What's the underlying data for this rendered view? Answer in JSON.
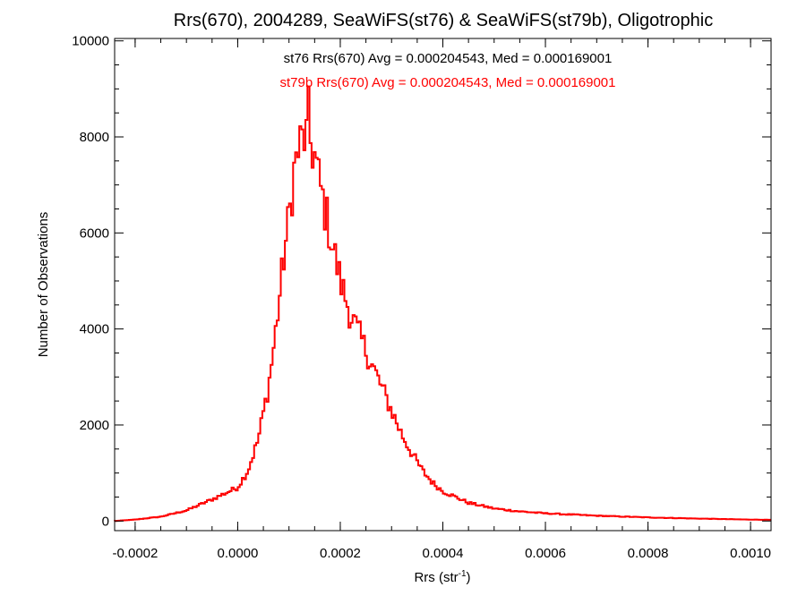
{
  "chart_data": {
    "type": "histogram",
    "title": "Rrs(670), 2004289, SeaWiFS(st76) & SeaWiFS(st79b), Oligotrophic",
    "xlabel": {
      "text": "Rrs (str",
      "sup": "-1",
      "close": ")"
    },
    "ylabel": "Number of Observations",
    "xlim": [
      -0.00024,
      0.00104
    ],
    "ylim": [
      -200,
      10050
    ],
    "xticks": [
      -0.0002,
      0.0,
      0.0002,
      0.0004,
      0.0006,
      0.0008,
      0.001
    ],
    "xtick_labels": [
      "-0.0002",
      "0.0000",
      "0.0002",
      "0.0004",
      "0.0006",
      "0.0008",
      "0.0010"
    ],
    "yticks": [
      0,
      2000,
      4000,
      6000,
      8000,
      10000
    ],
    "ytick_labels": [
      "0",
      "2000",
      "4000",
      "6000",
      "8000",
      "10000"
    ],
    "annotations": [
      {
        "text": "st76 Rrs(670) Avg = 0.000204543, Med = 0.000169001",
        "color": "#000000"
      },
      {
        "text": "st79b Rrs(670) Avg = 0.000204543, Med = 0.000169001",
        "color": "#ff0000"
      }
    ],
    "bin_width": 4e-06,
    "series": [
      {
        "name": "st76",
        "color": "#000000",
        "anchors": [
          [
            -0.00024,
            0
          ],
          [
            -0.0002,
            30
          ],
          [
            -0.00015,
            90
          ],
          [
            -0.0001,
            220
          ],
          [
            -5e-05,
            450
          ],
          [
            0.0,
            700
          ],
          [
            2e-05,
            1050
          ],
          [
            4e-05,
            1700
          ],
          [
            6e-05,
            2800
          ],
          [
            7e-05,
            3600
          ],
          [
            8e-05,
            4500
          ],
          [
            9e-05,
            5500
          ],
          [
            0.0001,
            6300
          ],
          [
            0.00011,
            7300
          ],
          [
            0.00012,
            7800
          ],
          [
            0.00013,
            8000
          ],
          [
            0.00014,
            7950
          ],
          [
            0.00015,
            7600
          ],
          [
            0.00016,
            7000
          ],
          [
            0.00017,
            6500
          ],
          [
            0.00018,
            6000
          ],
          [
            0.0002,
            5000
          ],
          [
            0.00022,
            4300
          ],
          [
            0.00024,
            3800
          ],
          [
            0.00026,
            3300
          ],
          [
            0.00028,
            2800
          ],
          [
            0.0003,
            2300
          ],
          [
            0.00032,
            1800
          ],
          [
            0.00034,
            1400
          ],
          [
            0.00036,
            1050
          ],
          [
            0.00038,
            800
          ],
          [
            0.0004,
            620
          ],
          [
            0.00045,
            380
          ],
          [
            0.0005,
            260
          ],
          [
            0.00055,
            200
          ],
          [
            0.0006,
            160
          ],
          [
            0.0007,
            110
          ],
          [
            0.0008,
            75
          ],
          [
            0.0009,
            50
          ],
          [
            0.001,
            30
          ],
          [
            0.00104,
            25
          ]
        ]
      },
      {
        "name": "st79b",
        "color": "#ff0000",
        "anchors": [
          [
            -0.00024,
            0
          ],
          [
            -0.0002,
            30
          ],
          [
            -0.00015,
            90
          ],
          [
            -0.0001,
            220
          ],
          [
            -5e-05,
            450
          ],
          [
            0.0,
            700
          ],
          [
            2e-05,
            1050
          ],
          [
            4e-05,
            1700
          ],
          [
            6e-05,
            2800
          ],
          [
            7e-05,
            3600
          ],
          [
            8e-05,
            4500
          ],
          [
            9e-05,
            5500
          ],
          [
            0.0001,
            6300
          ],
          [
            0.00011,
            7300
          ],
          [
            0.00012,
            7800
          ],
          [
            0.00013,
            8000
          ],
          [
            0.00014,
            7950
          ],
          [
            0.00015,
            7600
          ],
          [
            0.00016,
            7000
          ],
          [
            0.00017,
            6500
          ],
          [
            0.00018,
            6000
          ],
          [
            0.0002,
            5000
          ],
          [
            0.00022,
            4300
          ],
          [
            0.00024,
            3800
          ],
          [
            0.00026,
            3300
          ],
          [
            0.00028,
            2800
          ],
          [
            0.0003,
            2300
          ],
          [
            0.00032,
            1800
          ],
          [
            0.00034,
            1400
          ],
          [
            0.00036,
            1050
          ],
          [
            0.00038,
            800
          ],
          [
            0.0004,
            620
          ],
          [
            0.00045,
            380
          ],
          [
            0.0005,
            260
          ],
          [
            0.00055,
            200
          ],
          [
            0.0006,
            160
          ],
          [
            0.0007,
            110
          ],
          [
            0.0008,
            75
          ],
          [
            0.0009,
            50
          ],
          [
            0.001,
            30
          ],
          [
            0.00104,
            25
          ]
        ]
      }
    ],
    "peak": {
      "x": 0.000136,
      "y": 9050
    },
    "grid": false,
    "legend": "none"
  }
}
